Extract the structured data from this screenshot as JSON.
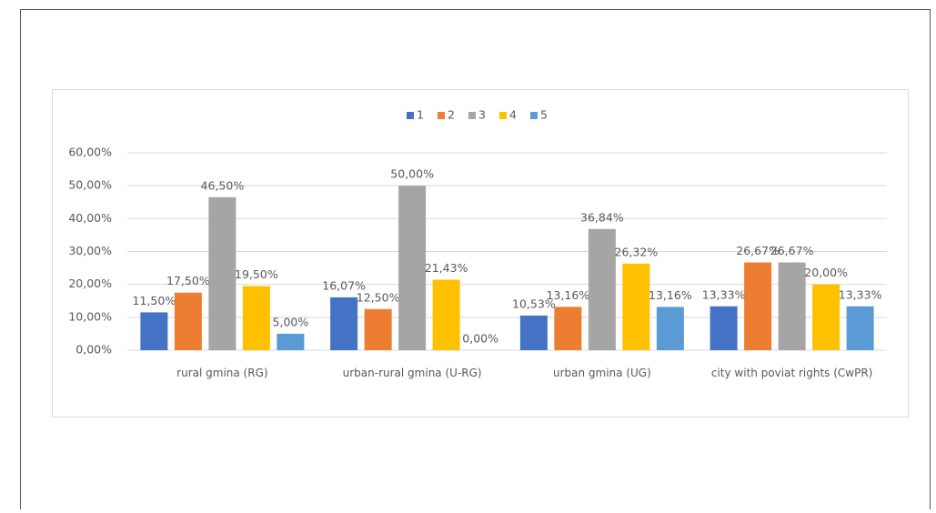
{
  "chart_data": {
    "type": "bar",
    "categories": [
      "rural gmina (RG)",
      "urban-rural gmina (U-RG)",
      "urban gmina (UG)",
      "city with poviat rights (CwPR)"
    ],
    "series": [
      {
        "name": "1",
        "color": "#4472c4",
        "values": [
          11.5,
          16.07,
          10.53,
          13.33
        ],
        "value_labels": [
          "11,50%",
          "16,07%",
          "10,53%",
          "13,33%"
        ]
      },
      {
        "name": "2",
        "color": "#ed7d31",
        "values": [
          17.5,
          12.5,
          13.16,
          26.67
        ],
        "value_labels": [
          "17,50%",
          "12,50%",
          "13,16%",
          "26,67%"
        ]
      },
      {
        "name": "3",
        "color": "#a5a5a5",
        "values": [
          46.5,
          50.0,
          36.84,
          26.67
        ],
        "value_labels": [
          "46,50%",
          "50,00%",
          "36,84%",
          "26,67%"
        ]
      },
      {
        "name": "4",
        "color": "#ffc000",
        "values": [
          19.5,
          21.43,
          26.32,
          20.0
        ],
        "value_labels": [
          "19,50%",
          "21,43%",
          "26,32%",
          "20,00%"
        ]
      },
      {
        "name": "5",
        "color": "#5b9bd5",
        "values": [
          5.0,
          0.0,
          13.16,
          13.33
        ],
        "value_labels": [
          "5,00%",
          "0,00%",
          "13,16%",
          "13,33%"
        ]
      }
    ],
    "ylim": [
      0,
      60
    ],
    "yticks": [
      {
        "value": 0,
        "label": "0,00%"
      },
      {
        "value": 10,
        "label": "10,00%"
      },
      {
        "value": 20,
        "label": "20,00%"
      },
      {
        "value": 30,
        "label": "30,00%"
      },
      {
        "value": 40,
        "label": "40,00%"
      },
      {
        "value": 50,
        "label": "50,00%"
      },
      {
        "value": 60,
        "label": "60,00%"
      }
    ],
    "grid": true,
    "legend": "top"
  }
}
